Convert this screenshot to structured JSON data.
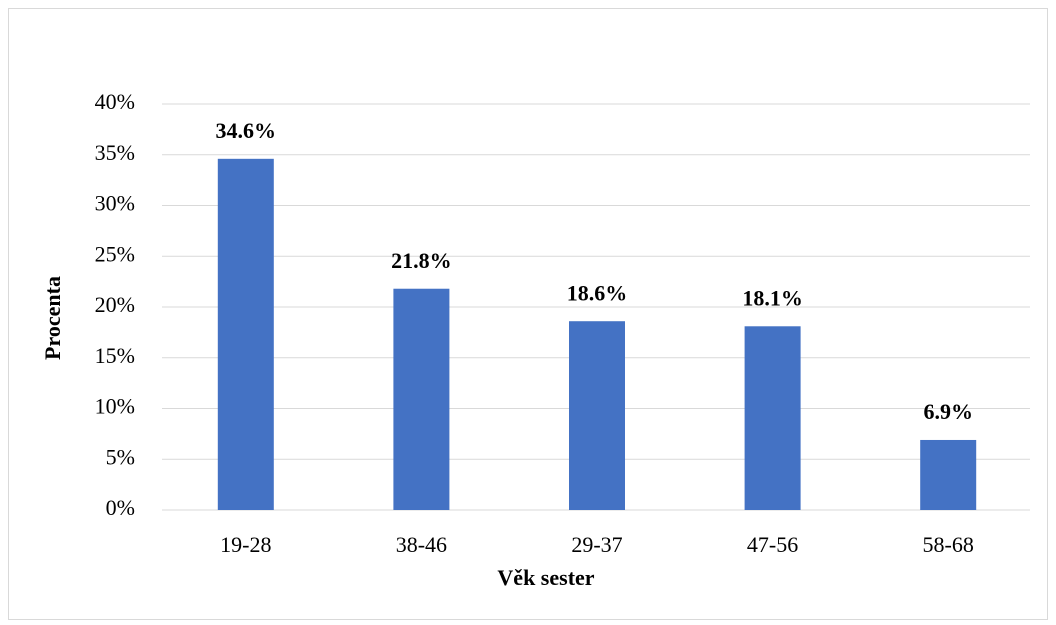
{
  "chart_data": {
    "type": "bar",
    "x_label": "Věk sester",
    "y_label": "Procenta",
    "categories": [
      "19-28",
      "38-46",
      "29-37",
      "47-56",
      "58-68"
    ],
    "values": [
      34.6,
      21.8,
      18.6,
      18.1,
      6.9
    ],
    "value_labels": [
      "34.6%",
      "21.8%",
      "18.6%",
      "18.1%",
      "6.9%"
    ],
    "color": "#4472c4",
    "ylim": [
      0,
      40
    ],
    "yticks": [
      {
        "value": 0,
        "label": "0%"
      },
      {
        "value": 5,
        "label": "5%"
      },
      {
        "value": 10,
        "label": "10%"
      },
      {
        "value": 15,
        "label": "15%"
      },
      {
        "value": 20,
        "label": "20%"
      },
      {
        "value": 25,
        "label": "25%"
      },
      {
        "value": 30,
        "label": "30%"
      },
      {
        "value": 35,
        "label": "35%"
      },
      {
        "value": 40,
        "label": "40%"
      }
    ],
    "grid": true
  }
}
